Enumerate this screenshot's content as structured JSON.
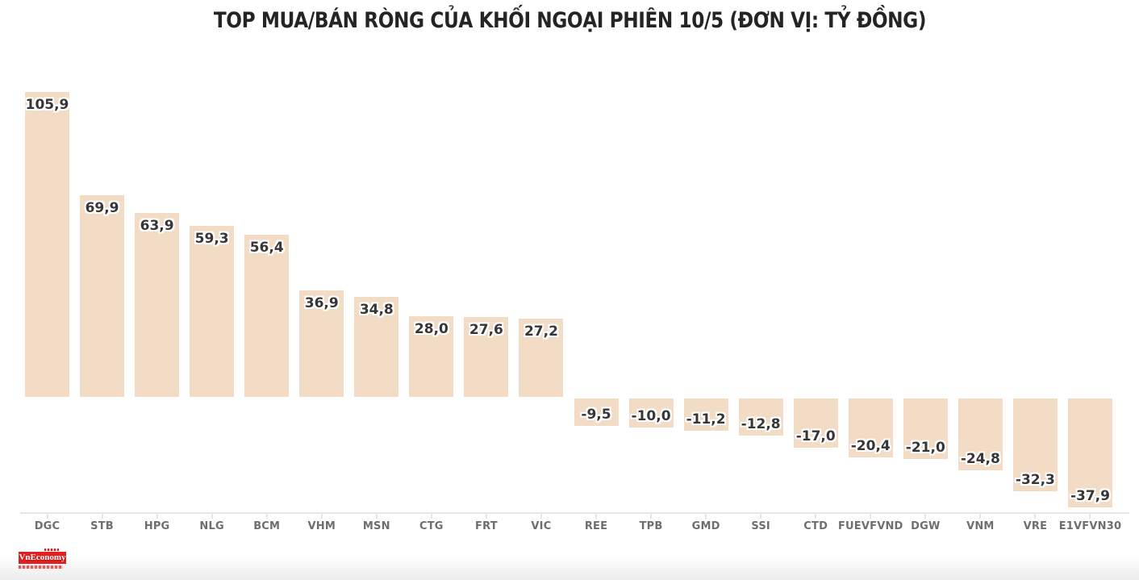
{
  "title": "TOP MUA/BÁN RÒNG CỦA KHỐI NGOẠI PHIÊN 10/5 (ĐƠN VỊ: TỶ ĐỒNG)",
  "chart_data": {
    "type": "bar",
    "categories": [
      "DGC",
      "STB",
      "HPG",
      "NLG",
      "BCM",
      "VHM",
      "MSN",
      "CTG",
      "FRT",
      "VIC",
      "REE",
      "TPB",
      "GMD",
      "SSI",
      "CTD",
      "FUEVFVND",
      "DGW",
      "VNM",
      "VRE",
      "E1VFVN30"
    ],
    "values": [
      105.9,
      69.9,
      63.9,
      59.3,
      56.4,
      36.9,
      34.8,
      28.0,
      27.6,
      27.2,
      -9.5,
      -10.0,
      -11.2,
      -12.8,
      -17.0,
      -20.4,
      -21.0,
      -24.8,
      -32.3,
      -37.9
    ],
    "value_labels": [
      "105,9",
      "69,9",
      "63,9",
      "59,3",
      "56,4",
      "36,9",
      "34,8",
      "28,0",
      "27,6",
      "27,2",
      "-9,5",
      "-10,0",
      "-11,2",
      "-12,8",
      "-17,0",
      "-20,4",
      "-21,0",
      "-24,8",
      "-32,3",
      "-37,9"
    ],
    "title": "TOP MUA/BÁN RÒNG CỦA KHỐI NGOẠI PHIÊN 10/5 (ĐƠN VỊ: TỶ ĐỒNG)",
    "xlabel": "",
    "ylabel": "",
    "ylim": [
      -40,
      110
    ],
    "grid": false,
    "legend": false,
    "bar_color": "#f2dcc6",
    "value_label_color": "#363636",
    "category_label_color": "#6e6e6e",
    "axis_line_color": "#e7e7e7",
    "title_color": "#242424"
  },
  "branding": {
    "logo_text": "VnEconomy",
    "logo_bg_color": "#e3201f",
    "logo_text_color": "#ffffff"
  }
}
